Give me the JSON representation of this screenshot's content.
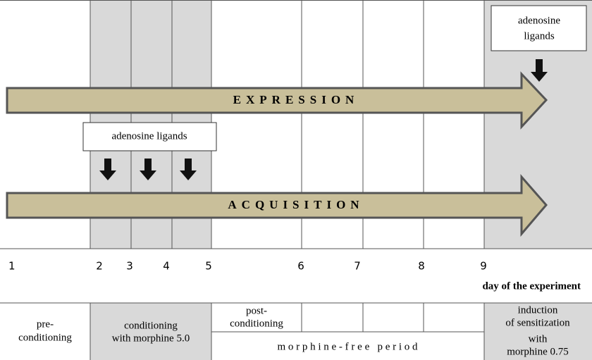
{
  "arrows": [
    {
      "label": "EXPRESSION"
    },
    {
      "label": "ACQUISITION"
    }
  ],
  "boxes": [
    {
      "lines": [
        "adenosine ligands"
      ]
    },
    {
      "lines": [
        "adenosine",
        "ligands"
      ]
    }
  ],
  "days": [
    1,
    2,
    3,
    4,
    5,
    6,
    7,
    8,
    9
  ],
  "axis_label": "day of the experiment",
  "phases": [
    {
      "lines": [
        "pre-",
        "conditioning"
      ]
    },
    {
      "lines": [
        "conditioning",
        "with morphine 5.0"
      ]
    },
    {
      "lines": [
        "post-",
        "conditioning"
      ]
    },
    {
      "lines": [
        "m o r p h i n e - f r e e   p e r i o d"
      ]
    },
    {
      "lines": [
        "induction",
        "of sensitization",
        "with",
        "morphine 0.75"
      ]
    }
  ]
}
